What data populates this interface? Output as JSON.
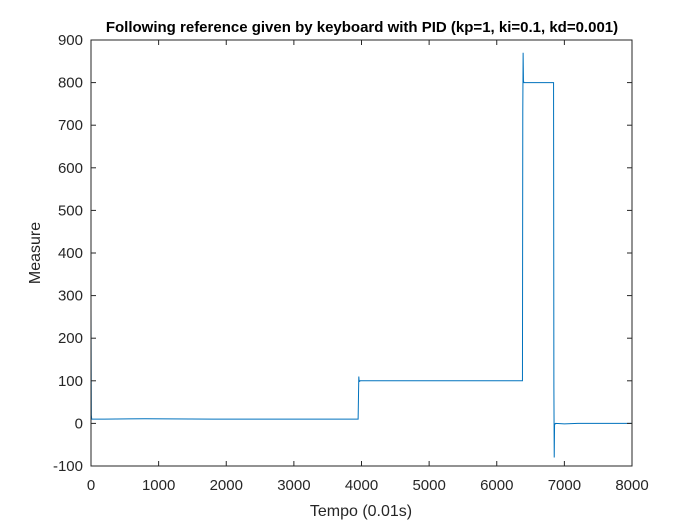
{
  "chart_data": {
    "type": "line",
    "title": "Following reference given by keyboard with PID (kp=1, ki=0.1, kd=0.001)",
    "xlabel": "Tempo (0.01s)",
    "ylabel": "Measure",
    "xlim": [
      0,
      8000
    ],
    "ylim": [
      -100,
      900
    ],
    "xticks": [
      0,
      1000,
      2000,
      3000,
      4000,
      5000,
      6000,
      7000,
      8000
    ],
    "yticks": [
      -100,
      0,
      100,
      200,
      300,
      400,
      500,
      600,
      700,
      800,
      900
    ],
    "xtick_labels": [
      "0",
      "1000",
      "2000",
      "3000",
      "4000",
      "5000",
      "6000",
      "7000",
      "8000"
    ],
    "ytick_labels": [
      "-100",
      "0",
      "100",
      "200",
      "300",
      "400",
      "500",
      "600",
      "700",
      "800",
      "900"
    ],
    "grid": false,
    "box": true,
    "series": [
      {
        "color": "#0072BD",
        "x": [
          0,
          0,
          5,
          10,
          30,
          200,
          800,
          1800,
          3000,
          3950,
          3960,
          3965,
          3970,
          3975,
          3980,
          6380,
          6385,
          6390,
          6395,
          6400,
          6420,
          6840,
          6845,
          6850,
          6855,
          6860,
          6870,
          7000,
          7200,
          8000
        ],
        "y": [
          0,
          270,
          20,
          10,
          10,
          10,
          11,
          10,
          10,
          10,
          110,
          98,
          100,
          99,
          100,
          100,
          730,
          870,
          805,
          800,
          800,
          800,
          85,
          -80,
          0,
          -2,
          0,
          -1,
          0,
          0
        ]
      }
    ]
  }
}
